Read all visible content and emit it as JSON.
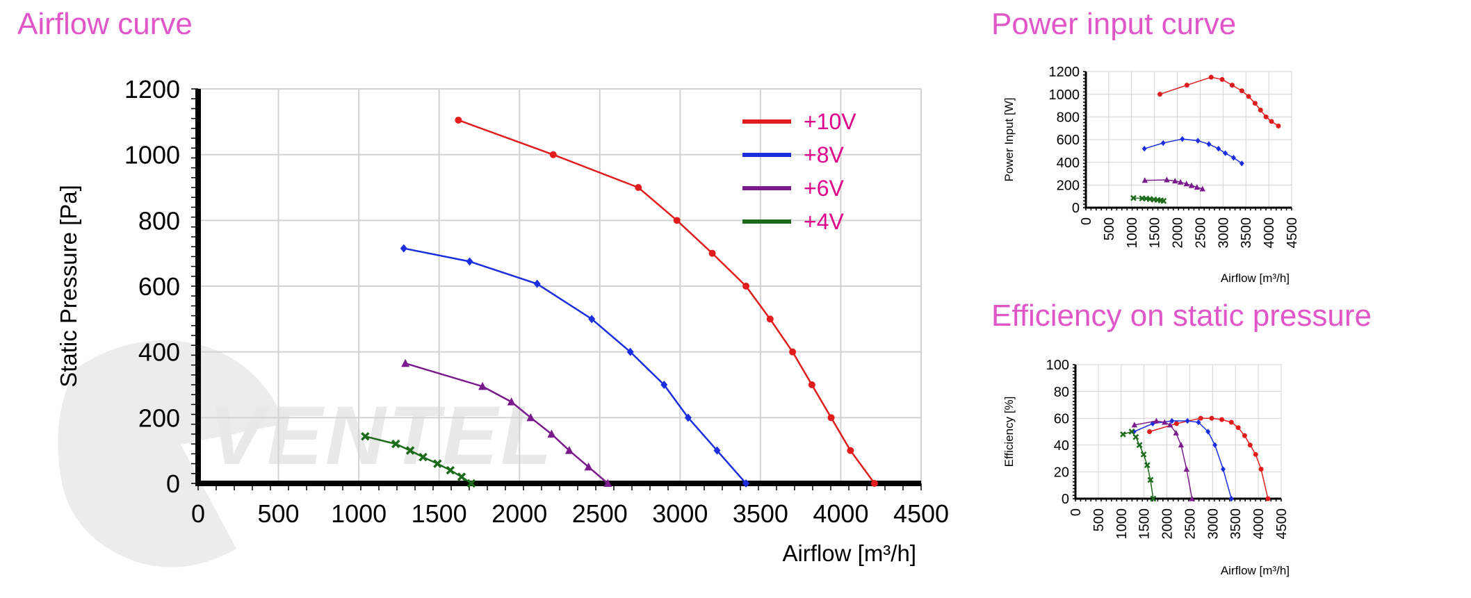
{
  "titles": {
    "airflow": "Airflow curve",
    "power": "Power input curve",
    "efficiency": "Efficiency on static pressure"
  },
  "watermark": "VENTEL",
  "chart_data": [
    {
      "type": "line",
      "title": "Airflow curve",
      "xlabel": "Airflow [m³/h]",
      "ylabel": "Static Pressure [Pa]",
      "xlim": [
        0,
        4500
      ],
      "ylim": [
        0,
        1200
      ],
      "xticks": [
        0,
        500,
        1000,
        1500,
        2000,
        2500,
        3000,
        3500,
        4000,
        4500
      ],
      "yticks": [
        0,
        200,
        400,
        600,
        800,
        1000,
        1200
      ],
      "grid": true,
      "legend": "top-right",
      "series": [
        {
          "name": "+10V",
          "color": "#e01c1c",
          "marker": "circle",
          "x": [
            1620,
            2210,
            2740,
            2980,
            3200,
            3410,
            3560,
            3700,
            3820,
            3940,
            4060,
            4210
          ],
          "y": [
            1105,
            1000,
            900,
            800,
            700,
            600,
            500,
            400,
            300,
            200,
            100,
            0
          ]
        },
        {
          "name": "+8V",
          "color": "#1a2ee0",
          "marker": "diamond",
          "x": [
            1280,
            1690,
            2110,
            2450,
            2690,
            2900,
            3050,
            3230,
            3410
          ],
          "y": [
            715,
            675,
            607,
            500,
            400,
            300,
            200,
            100,
            0
          ]
        },
        {
          "name": "+6V",
          "color": "#7a1a8c",
          "marker": "triangle",
          "x": [
            1290,
            1770,
            1950,
            2070,
            2200,
            2310,
            2430,
            2550
          ],
          "y": [
            365,
            295,
            248,
            200,
            150,
            100,
            50,
            0
          ]
        },
        {
          "name": "+4V",
          "color": "#1a6a1a",
          "marker": "x",
          "x": [
            1040,
            1230,
            1320,
            1400,
            1490,
            1570,
            1640,
            1700
          ],
          "y": [
            143,
            120,
            100,
            80,
            60,
            40,
            20,
            0
          ]
        }
      ]
    },
    {
      "type": "line",
      "title": "Power input curve",
      "xlabel": "Airflow  [m³/h]",
      "ylabel": "Power Input [W]",
      "xlim": [
        0,
        4500
      ],
      "ylim": [
        0,
        1200
      ],
      "xticks": [
        0,
        500,
        1000,
        1500,
        2000,
        2500,
        3000,
        3500,
        4000,
        4500
      ],
      "yticks": [
        0,
        200,
        400,
        600,
        800,
        1000,
        1200
      ],
      "grid": true,
      "series": [
        {
          "color": "#e01c1c",
          "marker": "circle",
          "x": [
            1620,
            2210,
            2740,
            2980,
            3200,
            3410,
            3560,
            3700,
            3820,
            3940,
            4060,
            4210
          ],
          "y": [
            1000,
            1080,
            1150,
            1130,
            1080,
            1030,
            980,
            920,
            860,
            800,
            760,
            720
          ]
        },
        {
          "color": "#1a2ee0",
          "marker": "diamond",
          "x": [
            1280,
            1690,
            2110,
            2450,
            2690,
            2900,
            3050,
            3230,
            3410
          ],
          "y": [
            520,
            570,
            605,
            590,
            560,
            520,
            480,
            440,
            390
          ]
        },
        {
          "color": "#7a1a8c",
          "marker": "triangle",
          "x": [
            1290,
            1770,
            1950,
            2070,
            2200,
            2310,
            2430,
            2550
          ],
          "y": [
            240,
            245,
            235,
            225,
            210,
            195,
            180,
            165
          ]
        },
        {
          "color": "#1a6a1a",
          "marker": "x",
          "x": [
            1040,
            1230,
            1320,
            1400,
            1490,
            1570,
            1640,
            1700
          ],
          "y": [
            85,
            82,
            80,
            76,
            72,
            68,
            64,
            60
          ]
        }
      ]
    },
    {
      "type": "line",
      "title": "Efficiency on static pressure",
      "xlabel": "Airflow [m³/h]",
      "ylabel": "Efficiency  [%]",
      "xlim": [
        0,
        4500
      ],
      "ylim": [
        0,
        100
      ],
      "xticks": [
        0,
        500,
        1000,
        1500,
        2000,
        2500,
        3000,
        3500,
        4000,
        4500
      ],
      "yticks": [
        0,
        20,
        40,
        60,
        80,
        100
      ],
      "grid": true,
      "series": [
        {
          "color": "#e01c1c",
          "marker": "circle",
          "x": [
            1620,
            2210,
            2740,
            2980,
            3200,
            3410,
            3560,
            3700,
            3820,
            3940,
            4060,
            4210
          ],
          "y": [
            50,
            56,
            60,
            60,
            59,
            57,
            53,
            47,
            40,
            33,
            22,
            0
          ]
        },
        {
          "color": "#1a2ee0",
          "marker": "diamond",
          "x": [
            1280,
            1690,
            2110,
            2450,
            2690,
            2900,
            3050,
            3230,
            3410
          ],
          "y": [
            50,
            56,
            58,
            58,
            57,
            50,
            40,
            22,
            0
          ]
        },
        {
          "color": "#7a1a8c",
          "marker": "triangle",
          "x": [
            1290,
            1770,
            1950,
            2070,
            2200,
            2310,
            2430,
            2550
          ],
          "y": [
            55,
            58,
            57,
            55,
            49,
            40,
            22,
            0
          ]
        },
        {
          "color": "#1a6a1a",
          "marker": "x",
          "x": [
            1040,
            1230,
            1320,
            1400,
            1490,
            1570,
            1640,
            1700
          ],
          "y": [
            48,
            50,
            46,
            40,
            33,
            25,
            14,
            0
          ]
        }
      ]
    }
  ]
}
